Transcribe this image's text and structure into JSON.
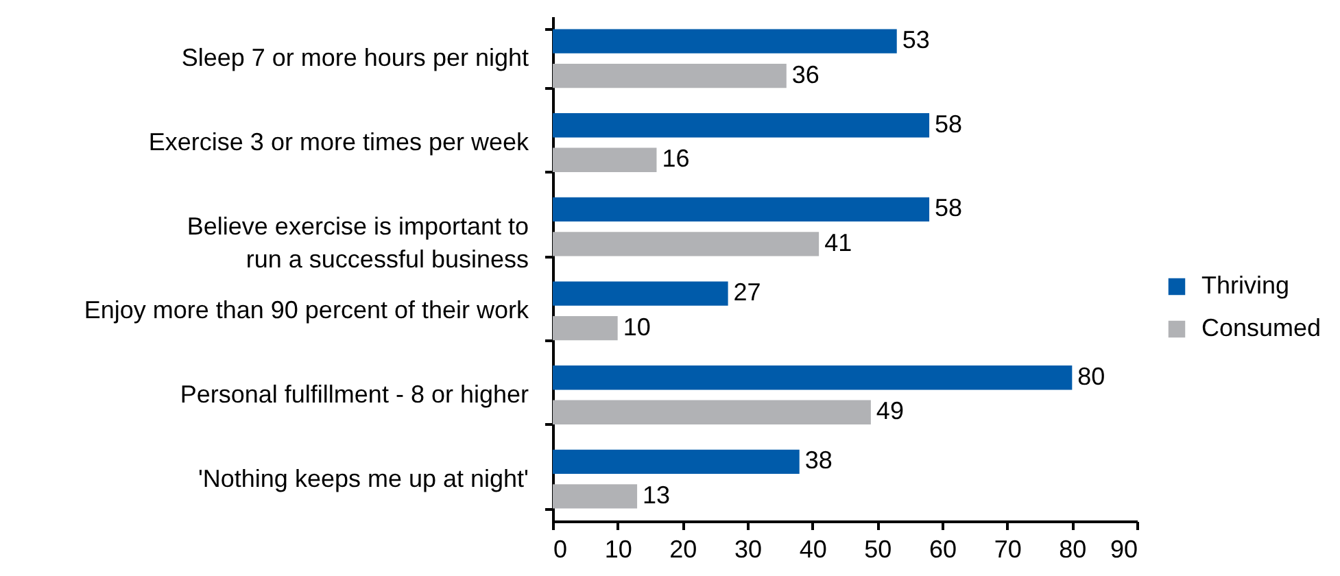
{
  "chart_data": {
    "type": "bar",
    "orientation": "horizontal",
    "categories": [
      "Sleep 7 or more hours per night",
      "Exercise 3 or more times per week",
      "Believe exercise is important to\nrun a successful business",
      "Enjoy more than 90 percent of their work",
      "Personal fulfillment - 8 or higher",
      "'Nothing keeps me up at night'"
    ],
    "series": [
      {
        "name": "Thriving",
        "color": "#005baa",
        "values": [
          53,
          58,
          58,
          27,
          80,
          38
        ]
      },
      {
        "name": "Consumed",
        "color": "#b1b2b5",
        "values": [
          36,
          16,
          41,
          10,
          49,
          13
        ]
      }
    ],
    "xlim": [
      0,
      90
    ],
    "xticks": [
      0,
      10,
      20,
      30,
      40,
      50,
      60,
      70,
      80,
      90
    ],
    "data_labels": true,
    "legend": "right",
    "grid": false
  }
}
